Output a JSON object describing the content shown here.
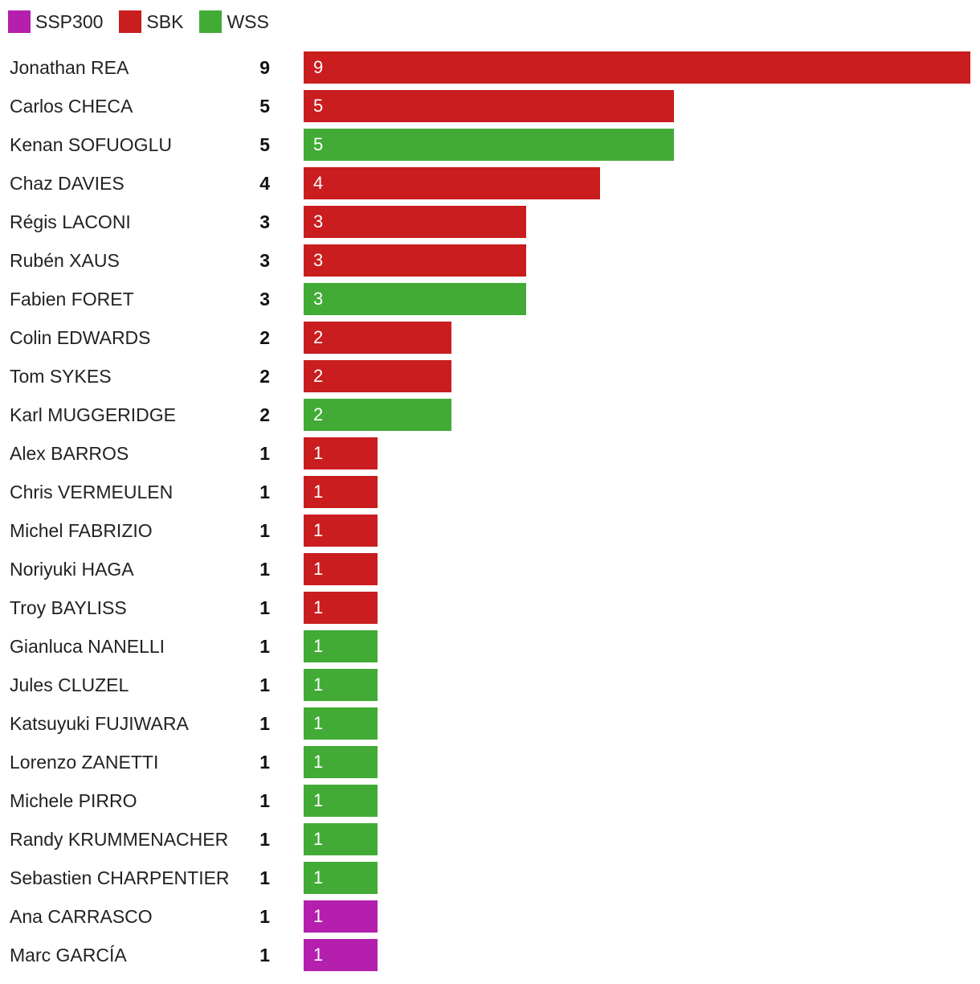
{
  "legend": [
    {
      "key": "SSP300",
      "label": "SSP300",
      "color": "#b41fad"
    },
    {
      "key": "SBK",
      "label": "SBK",
      "color": "#c91d1f"
    },
    {
      "key": "WSS",
      "label": "WSS",
      "color": "#41ab35"
    }
  ],
  "chart_data": {
    "type": "bar",
    "orientation": "horizontal",
    "categories": [
      "Jonathan REA",
      "Carlos CHECA",
      "Kenan SOFUOGLU",
      "Chaz DAVIES",
      "Régis LACONI",
      "Rubén XAUS",
      "Fabien FORET",
      "Colin EDWARDS",
      "Tom SYKES",
      "Karl MUGGERIDGE",
      "Alex BARROS",
      "Chris VERMEULEN",
      "Michel FABRIZIO",
      "Noriyuki HAGA",
      "Troy BAYLISS",
      "Gianluca NANELLI",
      "Jules CLUZEL",
      "Katsuyuki FUJIWARA",
      "Lorenzo ZANETTI",
      "Michele PIRRO",
      "Randy KRUMMENACHER",
      "Sebastien CHARPENTIER",
      "Ana CARRASCO",
      "Marc GARCÍA"
    ],
    "series": [
      {
        "name": "SSP300",
        "color": "#b41fad",
        "values": [
          0,
          0,
          0,
          0,
          0,
          0,
          0,
          0,
          0,
          0,
          0,
          0,
          0,
          0,
          0,
          0,
          0,
          0,
          0,
          0,
          0,
          0,
          1,
          1
        ]
      },
      {
        "name": "SBK",
        "color": "#c91d1f",
        "values": [
          9,
          5,
          0,
          4,
          3,
          3,
          0,
          2,
          2,
          0,
          1,
          1,
          1,
          1,
          1,
          0,
          0,
          0,
          0,
          0,
          0,
          0,
          0,
          0
        ]
      },
      {
        "name": "WSS",
        "color": "#41ab35",
        "values": [
          0,
          0,
          5,
          0,
          0,
          0,
          3,
          0,
          0,
          2,
          0,
          0,
          0,
          0,
          0,
          1,
          1,
          1,
          1,
          1,
          1,
          1,
          0,
          0
        ]
      }
    ],
    "totals": [
      9,
      5,
      5,
      4,
      3,
      3,
      3,
      2,
      2,
      2,
      1,
      1,
      1,
      1,
      1,
      1,
      1,
      1,
      1,
      1,
      1,
      1,
      1,
      1
    ],
    "xlim": [
      0,
      9
    ],
    "grid": false,
    "legend_position": "top-left",
    "title": "",
    "xlabel": "",
    "ylabel": ""
  }
}
